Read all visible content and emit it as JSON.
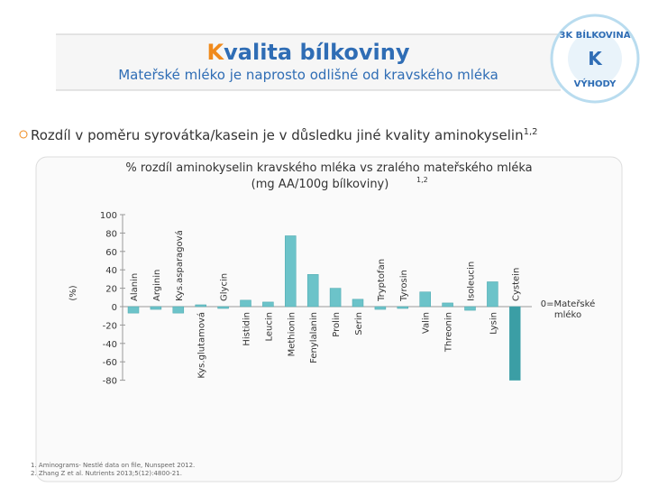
{
  "title": "Kvalita bílkoviny",
  "subtitle": "Mateřské mléko je naprosto odlišné od kravského mléka",
  "bullet": "Rozdíl v poměru syrovátka/kasein je v důsledku jiné kvality aminokyselin",
  "bullet_sup": "1,2",
  "logo": {
    "top": "3K BÍLKOVINA",
    "bottom": "VÝHODY",
    "center": "K"
  },
  "footnotes": [
    "1. Aminograms- Nestlé data on file, Nunspeet 2012.",
    "2. Zhang Z et al. Nutrients 2013;5(12):4800-21."
  ],
  "chart_data": {
    "type": "bar",
    "title_lines": [
      "% rozdíl aminokyselin kravského mléka vs zralého mateřského mléka",
      "(mg AA/100g bílkoviny)"
    ],
    "title_sup": "1,2",
    "y_label": "(%)",
    "note": [
      "0=Mateřské",
      "mléko"
    ],
    "categories": [
      "Alanin",
      "Arginin",
      "Kys.asparagová",
      "Kys.glutamová",
      "Glycin",
      "Histidin",
      "Leucin",
      "Methionin",
      "Fenylalanin",
      "Prolin",
      "Serin",
      "Tryptofan",
      "Tyrosin",
      "Valin",
      "Threonin",
      "Isoleucin",
      "Lysin",
      "Cystein"
    ],
    "values": [
      -7,
      -3,
      -7,
      2,
      -2,
      7,
      5,
      77,
      35,
      20,
      8,
      -3,
      -2,
      16,
      4,
      -4,
      27,
      -80
    ],
    "color": "#6cc3c9",
    "highlight_color": "#3b9ea5",
    "ylim": [
      -80,
      100
    ],
    "yticks": [
      100,
      80,
      60,
      40,
      20,
      0,
      -20,
      -40,
      -60,
      -80
    ]
  }
}
